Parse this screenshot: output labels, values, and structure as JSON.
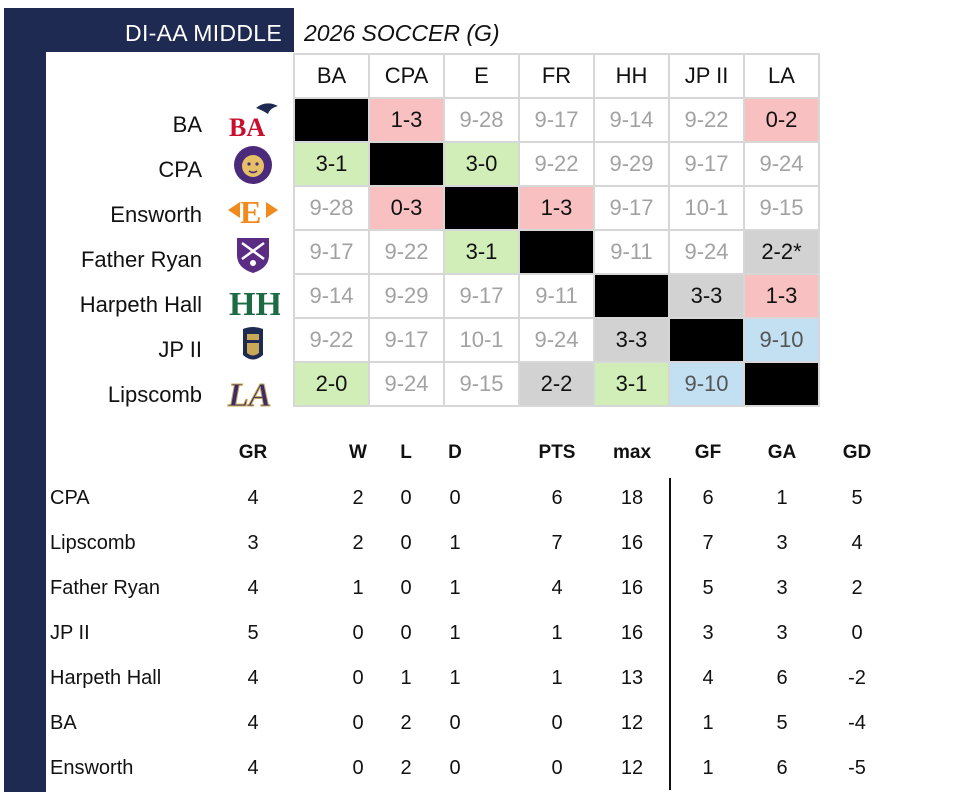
{
  "header": {
    "league": "DI-AA  MIDDLE",
    "subtitle": "2026  SOCCER (G)"
  },
  "matrix": {
    "columns": [
      "BA",
      "CPA",
      "E",
      "FR",
      "HH",
      "JP II",
      "LA"
    ],
    "rows": [
      {
        "team": "BA",
        "logo": "ba-eagle-logo",
        "cells": [
          {
            "v": "",
            "t": "black"
          },
          {
            "v": "1-3",
            "t": "loss"
          },
          {
            "v": "9-28",
            "t": "date"
          },
          {
            "v": "9-17",
            "t": "date"
          },
          {
            "v": "9-14",
            "t": "date"
          },
          {
            "v": "9-22",
            "t": "date"
          },
          {
            "v": "0-2",
            "t": "loss"
          }
        ]
      },
      {
        "team": "CPA",
        "logo": "cpa-lion-logo",
        "cells": [
          {
            "v": "3-1",
            "t": "win"
          },
          {
            "v": "",
            "t": "black"
          },
          {
            "v": "3-0",
            "t": "win"
          },
          {
            "v": "9-22",
            "t": "date"
          },
          {
            "v": "9-29",
            "t": "date"
          },
          {
            "v": "9-17",
            "t": "date"
          },
          {
            "v": "9-24",
            "t": "date"
          }
        ]
      },
      {
        "team": "Ensworth",
        "logo": "ensworth-e-logo",
        "cells": [
          {
            "v": "9-28",
            "t": "date"
          },
          {
            "v": "0-3",
            "t": "loss"
          },
          {
            "v": "",
            "t": "black"
          },
          {
            "v": "1-3",
            "t": "loss"
          },
          {
            "v": "9-17",
            "t": "date"
          },
          {
            "v": "10-1",
            "t": "date"
          },
          {
            "v": "9-15",
            "t": "date"
          }
        ]
      },
      {
        "team": "Father Ryan",
        "logo": "father-ryan-shield-logo",
        "cells": [
          {
            "v": "9-17",
            "t": "date"
          },
          {
            "v": "9-22",
            "t": "date"
          },
          {
            "v": "3-1",
            "t": "win"
          },
          {
            "v": "",
            "t": "black"
          },
          {
            "v": "9-11",
            "t": "date"
          },
          {
            "v": "9-24",
            "t": "date"
          },
          {
            "v": "2-2*",
            "t": "draw"
          }
        ]
      },
      {
        "team": "Harpeth Hall",
        "logo": "harpeth-hall-hh-logo",
        "cells": [
          {
            "v": "9-14",
            "t": "date"
          },
          {
            "v": "9-29",
            "t": "date"
          },
          {
            "v": "9-17",
            "t": "date"
          },
          {
            "v": "9-11",
            "t": "date"
          },
          {
            "v": "",
            "t": "black"
          },
          {
            "v": "3-3",
            "t": "draw"
          },
          {
            "v": "1-3",
            "t": "loss"
          }
        ]
      },
      {
        "team": "JP II",
        "logo": "jp-ii-knight-logo",
        "cells": [
          {
            "v": "9-22",
            "t": "date"
          },
          {
            "v": "9-17",
            "t": "date"
          },
          {
            "v": "10-1",
            "t": "date"
          },
          {
            "v": "9-24",
            "t": "date"
          },
          {
            "v": "3-3",
            "t": "draw"
          },
          {
            "v": "",
            "t": "black"
          },
          {
            "v": "9-10",
            "t": "blue"
          }
        ]
      },
      {
        "team": "Lipscomb",
        "logo": "lipscomb-la-logo",
        "cells": [
          {
            "v": "2-0",
            "t": "win"
          },
          {
            "v": "9-24",
            "t": "date"
          },
          {
            "v": "9-15",
            "t": "date"
          },
          {
            "v": "2-2",
            "t": "draw"
          },
          {
            "v": "3-1",
            "t": "win"
          },
          {
            "v": "9-10",
            "t": "blue"
          },
          {
            "v": "",
            "t": "black"
          }
        ]
      }
    ]
  },
  "standings": {
    "headers": [
      "GR",
      "W",
      "L",
      "D",
      "PTS",
      "max",
      "GF",
      "GA",
      "GD"
    ],
    "rows": [
      {
        "team": "CPA",
        "vals": [
          "4",
          "2",
          "0",
          "0",
          "6",
          "18",
          "6",
          "1",
          "5"
        ]
      },
      {
        "team": "Lipscomb",
        "vals": [
          "3",
          "2",
          "0",
          "1",
          "7",
          "16",
          "7",
          "3",
          "4"
        ]
      },
      {
        "team": "Father Ryan",
        "vals": [
          "4",
          "1",
          "0",
          "1",
          "4",
          "16",
          "5",
          "3",
          "2"
        ]
      },
      {
        "team": "JP II",
        "vals": [
          "5",
          "0",
          "0",
          "1",
          "1",
          "16",
          "3",
          "3",
          "0"
        ]
      },
      {
        "team": "Harpeth Hall",
        "vals": [
          "4",
          "0",
          "1",
          "1",
          "1",
          "13",
          "4",
          "6",
          "-2"
        ]
      },
      {
        "team": "BA",
        "vals": [
          "4",
          "0",
          "2",
          "0",
          "0",
          "12",
          "1",
          "5",
          "-4"
        ]
      },
      {
        "team": "Ensworth",
        "vals": [
          "4",
          "0",
          "2",
          "0",
          "0",
          "12",
          "1",
          "6",
          "-5"
        ]
      }
    ]
  },
  "colors": {
    "navy": "#1f2a52",
    "win": "#d1eeb8",
    "loss": "#f8c0c0",
    "draw": "#d2d2d2",
    "scheduled": "#c3dff2"
  }
}
